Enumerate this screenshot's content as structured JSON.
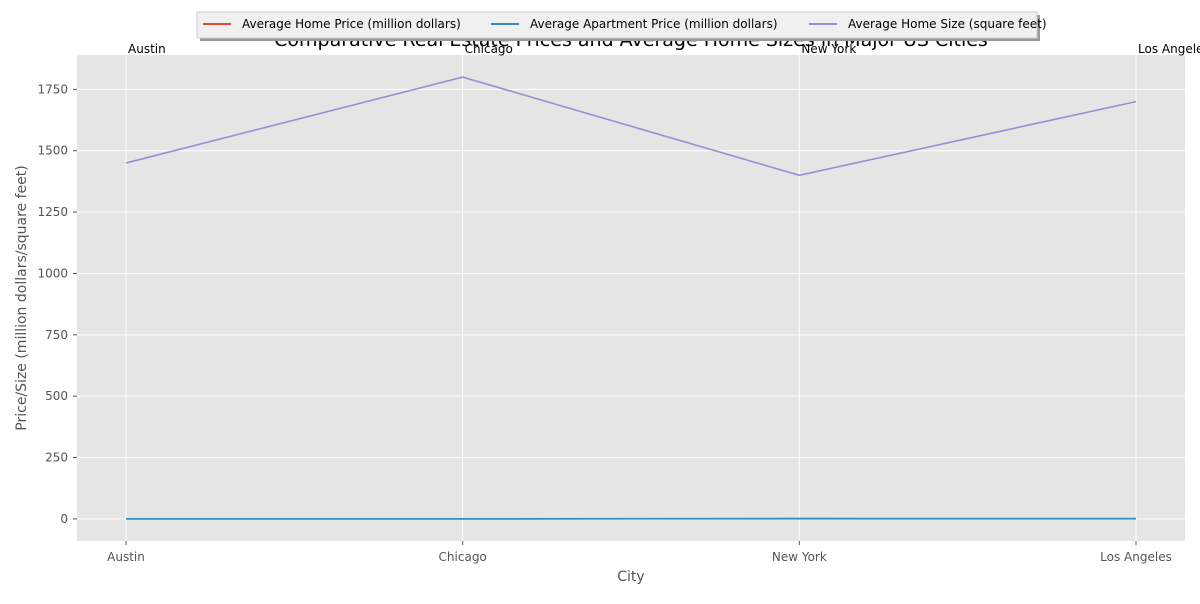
{
  "chart_data": {
    "type": "line",
    "title": "Comparative Real Estate Prices and Average Home Sizes in Major US Cities",
    "xlabel": "City",
    "ylabel": "Price/Size (million dollars/square feet)",
    "categories": [
      "Austin",
      "Chicago",
      "New York",
      "Los Angeles"
    ],
    "ylim": [
      -90,
      1890
    ],
    "yticks": [
      0,
      250,
      500,
      750,
      1000,
      1250,
      1500,
      1750
    ],
    "grid": true,
    "legend_position": "top-center",
    "series": [
      {
        "name": "Average Home Price (million dollars)",
        "color": "#E24A33",
        "values": [
          0.4,
          0.6,
          1.2,
          0.9
        ]
      },
      {
        "name": "Average Apartment Price (million dollars)",
        "color": "#348ABD",
        "values": [
          0.3,
          0.5,
          1.0,
          0.7
        ]
      },
      {
        "name": "Average Home Size (square feet)",
        "color": "#988ED5",
        "values": [
          1450,
          1800,
          1400,
          1700
        ]
      }
    ],
    "point_labels": [
      "Austin",
      "Chicago",
      "New York",
      "Los Angeles"
    ]
  }
}
